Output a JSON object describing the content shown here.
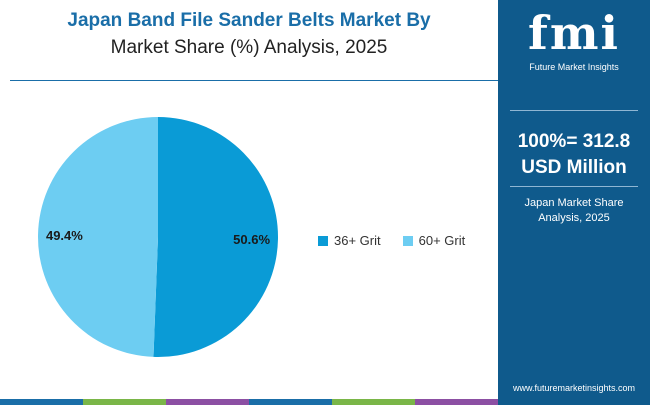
{
  "title": {
    "line1": "Japan Band File Sander Belts Market By",
    "line2": "Market Share (%) Analysis, 2025"
  },
  "chart_data": {
    "type": "pie",
    "categories": [
      "36+ Grit",
      "60+ Grit"
    ],
    "values": [
      50.6,
      49.4
    ],
    "data_labels": [
      "50.6%",
      "49.4%"
    ],
    "colors": [
      "#0a9bd6",
      "#6dcdf2"
    ],
    "legend_position": "right"
  },
  "sidebar": {
    "logo_text": "fmi",
    "logo_subtitle": "Future Market Insights",
    "total_value": "100%= 312.8",
    "total_unit": "USD Million",
    "caption_line1": "Japan Market Share",
    "caption_line2": "Analysis, 2025",
    "url": "www.futuremarketinsights.com"
  },
  "footer_colors": [
    "#1a6ea8",
    "#7ab648",
    "#8c4fa3",
    "#1a6ea8",
    "#7ab648",
    "#8c4fa3"
  ],
  "colors": {
    "brand_blue": "#0f5a8c",
    "title_blue": "#1a6ea8"
  }
}
